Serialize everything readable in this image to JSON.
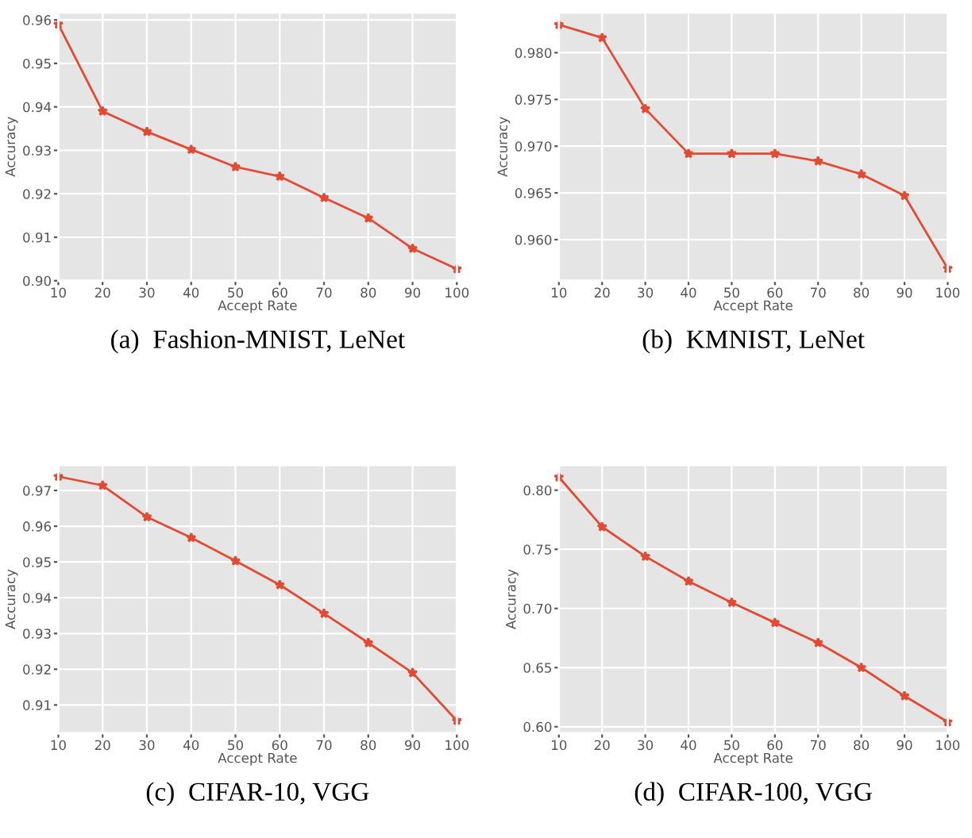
{
  "chart_data": [
    {
      "type": "line",
      "title": "(a)  Fashion-MNIST, LeNet",
      "xlabel": "Accept Rate",
      "ylabel": "Accuracy",
      "x": [
        10,
        20,
        30,
        40,
        50,
        60,
        70,
        80,
        90,
        100
      ],
      "series": [
        {
          "color": "#e24a33",
          "values": [
            0.959,
            0.939,
            0.9343,
            0.9302,
            0.9262,
            0.924,
            0.9191,
            0.9144,
            0.9074,
            0.9027
          ]
        }
      ],
      "xlim": [
        10,
        100
      ],
      "ylim": [
        0.9,
        0.9617
      ],
      "xticks": [
        10,
        20,
        30,
        40,
        50,
        60,
        70,
        80,
        90,
        100
      ],
      "yticks": [
        {
          "value": 0.9,
          "label": "0.90"
        },
        0.91,
        0.92,
        0.93,
        0.94,
        0.95,
        0.96
      ],
      "grid": true,
      "marker": "star",
      "line_style": "solid"
    },
    {
      "type": "line",
      "title": "(b)  KMNIST, LeNet",
      "xlabel": "Accept Rate",
      "ylabel": "Accuracy",
      "x": [
        10,
        20,
        30,
        40,
        50,
        60,
        70,
        80,
        90,
        100
      ],
      "series": [
        {
          "color": "#e24a33",
          "values": [
            0.983,
            0.9816,
            0.974,
            0.9692,
            0.9692,
            0.9692,
            0.9684,
            0.967,
            0.9647,
            0.9569
          ]
        }
      ],
      "xlim": [
        10,
        100
      ],
      "ylim": [
        0.9556,
        0.9843
      ],
      "xticks": [
        10,
        20,
        30,
        40,
        50,
        60,
        70,
        80,
        90,
        100
      ],
      "yticks": [
        {
          "value": 0.96,
          "label": "0.960"
        },
        0.965,
        {
          "value": 0.97,
          "label": "0.970"
        },
        0.975,
        {
          "value": 0.98,
          "label": "0.980"
        }
      ],
      "grid": true,
      "marker": "star",
      "line_style": "solid"
    },
    {
      "type": "line",
      "title": "(c)  CIFAR-10, VGG",
      "xlabel": "Accept Rate",
      "ylabel": "Accuracy",
      "x": [
        10,
        20,
        30,
        40,
        50,
        60,
        70,
        80,
        90,
        100
      ],
      "series": [
        {
          "color": "#e24a33",
          "values": [
            0.9739,
            0.9714,
            0.9626,
            0.9568,
            0.9503,
            0.9436,
            0.9356,
            0.9274,
            0.919,
            0.9056
          ]
        }
      ],
      "xlim": [
        10,
        100
      ],
      "ylim": [
        0.9021,
        0.9771
      ],
      "xticks": [
        10,
        20,
        30,
        40,
        50,
        60,
        70,
        80,
        90,
        100
      ],
      "yticks": [
        0.91,
        0.92,
        0.93,
        0.94,
        0.95,
        0.96,
        0.97
      ],
      "grid": true,
      "marker": "star",
      "line_style": "solid"
    },
    {
      "type": "line",
      "title": "(d)  CIFAR-100, VGG",
      "xlabel": "Accept Rate",
      "ylabel": "Accuracy",
      "x": [
        10,
        20,
        30,
        40,
        50,
        60,
        70,
        80,
        90,
        100
      ],
      "series": [
        {
          "color": "#e24a33",
          "values": [
            0.811,
            0.769,
            0.744,
            0.723,
            0.705,
            0.688,
            0.671,
            0.65,
            0.626,
            0.604
          ]
        }
      ],
      "xlim": [
        10,
        100
      ],
      "ylim": [
        0.5945,
        0.8212
      ],
      "xticks": [
        10,
        20,
        30,
        40,
        50,
        60,
        70,
        80,
        90,
        100
      ],
      "yticks": [
        {
          "value": 0.6,
          "label": "0.60"
        },
        {
          "value": 0.65,
          "label": "0.65"
        },
        {
          "value": 0.7,
          "label": "0.70"
        },
        {
          "value": 0.75,
          "label": "0.75"
        },
        {
          "value": 0.8,
          "label": "0.80"
        }
      ],
      "grid": true,
      "marker": "star",
      "line_style": "solid"
    }
  ]
}
